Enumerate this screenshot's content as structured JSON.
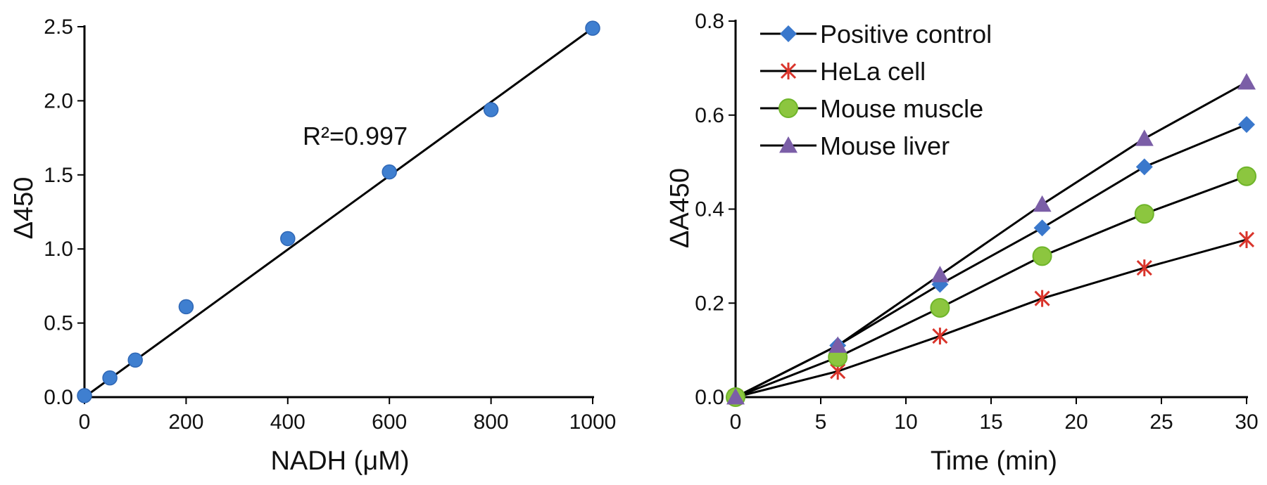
{
  "chart_data": [
    {
      "type": "scatter",
      "xlabel": "NADH (μM)",
      "ylabel": "Δ450",
      "xlim": [
        0,
        1000
      ],
      "ylim": [
        0,
        2.5
      ],
      "xticks": [
        "0",
        "200",
        "400",
        "600",
        "800",
        "1000"
      ],
      "yticks": [
        "0.0",
        "0.5",
        "1.0",
        "1.5",
        "2.0",
        "2.5"
      ],
      "annotation": "R²=0.997",
      "grid": false,
      "colors": {
        "points": "#3f7fd0",
        "fit_line": "#000000"
      },
      "points": [
        {
          "x": 0,
          "y": 0.01
        },
        {
          "x": 50,
          "y": 0.13
        },
        {
          "x": 100,
          "y": 0.25
        },
        {
          "x": 200,
          "y": 0.61
        },
        {
          "x": 400,
          "y": 1.07
        },
        {
          "x": 600,
          "y": 1.52
        },
        {
          "x": 800,
          "y": 1.94
        },
        {
          "x": 1000,
          "y": 2.49
        }
      ],
      "fit_line": {
        "x": [
          0,
          1000
        ],
        "y": [
          0,
          2.49
        ]
      }
    },
    {
      "type": "line",
      "xlabel": "Time (min)",
      "ylabel": "ΔA450",
      "xlim": [
        0,
        30
      ],
      "ylim": [
        0,
        0.8
      ],
      "xticks": [
        "0",
        "5",
        "10",
        "15",
        "20",
        "25",
        "30"
      ],
      "yticks": [
        "0.0",
        "0.2",
        "0.4",
        "0.6",
        "0.8"
      ],
      "x": [
        0,
        6,
        12,
        18,
        24,
        30
      ],
      "legend_position": "top-left",
      "grid": false,
      "series": [
        {
          "name": "Positive control",
          "marker": "diamond",
          "color": "#3a78cc",
          "values": [
            0,
            0.11,
            0.24,
            0.36,
            0.49,
            0.58
          ]
        },
        {
          "name": "HeLa cell",
          "marker": "star",
          "color": "#d9342b",
          "values": [
            0,
            0.055,
            0.13,
            0.21,
            0.275,
            0.335
          ]
        },
        {
          "name": "Mouse muscle",
          "marker": "circle",
          "color": "#8cc63f",
          "values": [
            0,
            0.085,
            0.19,
            0.3,
            0.39,
            0.47
          ]
        },
        {
          "name": "Mouse liver",
          "marker": "triangle",
          "color": "#7b5ea7",
          "values": [
            0,
            0.11,
            0.26,
            0.41,
            0.55,
            0.67
          ]
        }
      ]
    }
  ]
}
